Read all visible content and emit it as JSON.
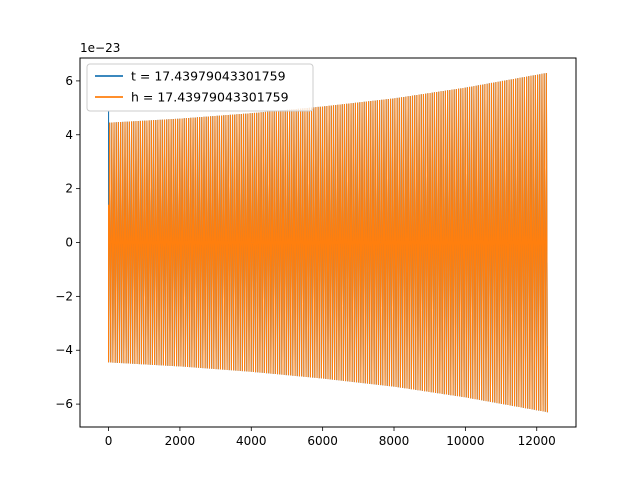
{
  "chart_data": {
    "type": "line",
    "title": "",
    "xlabel": "",
    "ylabel": "",
    "xlim": [
      -800,
      13100
    ],
    "ylim": [
      -6.85,
      6.85
    ],
    "y_scale_label": "1e−23",
    "x_ticks": [
      0,
      2000,
      4000,
      6000,
      8000,
      10000,
      12000
    ],
    "x_tick_labels": [
      "0",
      "2000",
      "4000",
      "6000",
      "8000",
      "10000",
      "12000"
    ],
    "y_ticks": [
      -6,
      -4,
      -2,
      0,
      2,
      4,
      6
    ],
    "y_tick_labels": [
      "−6",
      "−4",
      "−2",
      "0",
      "2",
      "4",
      "6"
    ],
    "grid": false,
    "legend_position": "top-left",
    "series": [
      {
        "name": "t = 17.43979043301759",
        "color": "#1f77b4",
        "x_range": [
          0,
          12300
        ],
        "start_value": 4.9,
        "envelope": [
          [
            0,
            4.45
          ],
          [
            2000,
            4.6
          ],
          [
            4000,
            4.8
          ],
          [
            6000,
            5.05
          ],
          [
            8000,
            5.35
          ],
          [
            10000,
            5.75
          ],
          [
            12300,
            6.3
          ]
        ],
        "cycles": 200,
        "end_value": -3.85
      },
      {
        "name": "h = 17.43979043301759",
        "color": "#ff7f0e",
        "x_range": [
          0,
          12300
        ],
        "start_value": 1.4,
        "envelope": [
          [
            0,
            4.45
          ],
          [
            2000,
            4.6
          ],
          [
            4000,
            4.8
          ],
          [
            6000,
            5.05
          ],
          [
            8000,
            5.35
          ],
          [
            10000,
            5.75
          ],
          [
            12300,
            6.3
          ]
        ],
        "cycles": 200,
        "end_value": -3.85
      }
    ]
  }
}
